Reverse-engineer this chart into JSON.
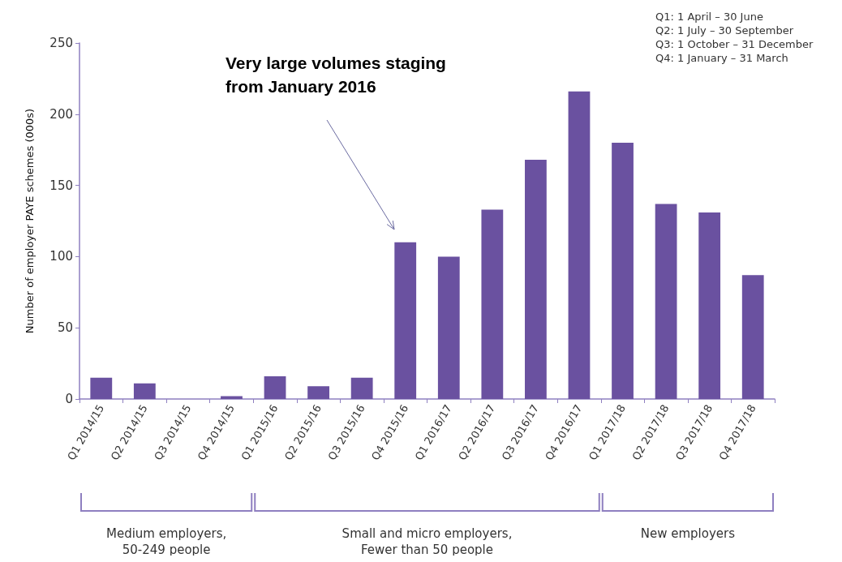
{
  "chart_data": {
    "type": "bar",
    "ylabel": "Number of employer PAYE schemes (000s)",
    "categories": [
      "Q1 2014/15",
      "Q2 2014/15",
      "Q3 2014/15",
      "Q4 2014/15",
      "Q1 2015/16",
      "Q2 2015/16",
      "Q3 2015/16",
      "Q4 2015/16",
      "Q1 2016/17",
      "Q2 2016/17",
      "Q3 2016/17",
      "Q4 2016/17",
      "Q1 2017/18",
      "Q2 2017/18",
      "Q3 2017/18",
      "Q4 2017/18"
    ],
    "values": [
      15,
      11,
      0,
      2,
      16,
      9,
      15,
      110,
      100,
      133,
      168,
      216,
      180,
      137,
      131,
      87
    ],
    "color": "#6a51a0",
    "ylim": [
      0,
      250
    ],
    "yticks": [
      0,
      50,
      100,
      150,
      200,
      250
    ],
    "grid": false,
    "annotations": [
      "Very large volumes staging from January 2016",
      "Q1: 1 April – 30 June",
      "Q2: 1 July – 30 September",
      "Q3: 1 October – 31 December",
      "Q4: 1 January – 31 March",
      "Medium employers,\n50-249 people",
      "Small and micro employers,\nFewer than 50 people",
      "New employers"
    ]
  }
}
